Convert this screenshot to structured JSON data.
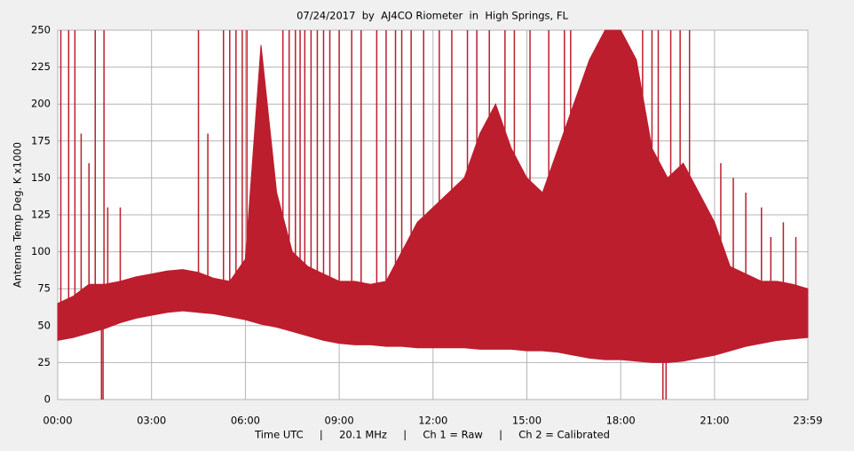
{
  "chart_data": {
    "type": "range-area",
    "title": "07/24/2017  by  AJ4CO Riometer  in  High Springs, FL",
    "ylabel": "Antenna Temp Deg. K x1000",
    "xlabel": "Time UTC     |     20.1 MHz     |     Ch 1 = Raw     |     Ch 2 = Calibrated",
    "color": "#bc1e2e",
    "grid": true,
    "xlim": [
      0,
      23.983
    ],
    "ylim": [
      0,
      250
    ],
    "xticks": [
      {
        "value": 0,
        "label": "00:00"
      },
      {
        "value": 3,
        "label": "03:00"
      },
      {
        "value": 6,
        "label": "06:00"
      },
      {
        "value": 9,
        "label": "09:00"
      },
      {
        "value": 12,
        "label": "12:00"
      },
      {
        "value": 15,
        "label": "15:00"
      },
      {
        "value": 18,
        "label": "18:00"
      },
      {
        "value": 21,
        "label": "21:00"
      },
      {
        "value": 23.983,
        "label": "23:59"
      }
    ],
    "yticks": [
      0,
      25,
      50,
      75,
      100,
      125,
      150,
      175,
      200,
      225,
      250
    ],
    "x": [
      0,
      0.5,
      1,
      1.5,
      2,
      2.5,
      3,
      3.5,
      4,
      4.5,
      5,
      5.5,
      6,
      6.5,
      7,
      7.5,
      8,
      8.5,
      9,
      9.5,
      10,
      10.5,
      11,
      11.5,
      12,
      12.5,
      13,
      13.5,
      14,
      14.5,
      15,
      15.5,
      16,
      16.5,
      17,
      17.5,
      18,
      18.5,
      19,
      19.5,
      20,
      20.5,
      21,
      21.5,
      22,
      22.5,
      23,
      23.5,
      23.983
    ],
    "lower": [
      40,
      42,
      45,
      48,
      52,
      55,
      57,
      59,
      60,
      59,
      58,
      56,
      54,
      51,
      49,
      46,
      43,
      40,
      38,
      37,
      37,
      36,
      36,
      35,
      35,
      35,
      35,
      34,
      34,
      34,
      33,
      33,
      32,
      30,
      28,
      27,
      27,
      26,
      25,
      25,
      26,
      28,
      30,
      33,
      36,
      38,
      40,
      41,
      42
    ],
    "upper": [
      65,
      70,
      78,
      78,
      80,
      83,
      85,
      87,
      88,
      86,
      82,
      80,
      95,
      240,
      140,
      100,
      90,
      85,
      80,
      80,
      78,
      80,
      100,
      120,
      130,
      140,
      150,
      180,
      200,
      170,
      150,
      140,
      170,
      200,
      230,
      250,
      250,
      230,
      170,
      150,
      160,
      140,
      120,
      90,
      85,
      80,
      80,
      78,
      75
    ],
    "spikes": {
      "x": [
        0.1,
        0.35,
        0.55,
        0.75,
        1.0,
        1.2,
        1.48,
        1.6,
        2.0,
        4.5,
        4.8,
        5.3,
        5.5,
        5.7,
        5.9,
        6.05,
        7.2,
        7.4,
        7.6,
        7.75,
        7.9,
        8.1,
        8.3,
        8.5,
        8.7,
        9.0,
        9.4,
        9.7,
        10.2,
        10.5,
        10.8,
        11.0,
        11.3,
        11.7,
        12.2,
        12.6,
        13.1,
        13.4,
        13.8,
        14.3,
        14.6,
        15.1,
        15.7,
        16.2,
        16.4,
        18.7,
        19.0,
        19.2,
        19.6,
        19.9,
        20.2,
        21.2,
        21.6,
        22.0,
        22.5,
        22.8,
        23.2,
        23.6
      ],
      "values": [
        250,
        250,
        250,
        180,
        160,
        250,
        250,
        130,
        130,
        250,
        180,
        250,
        250,
        250,
        250,
        250,
        250,
        250,
        250,
        250,
        250,
        250,
        250,
        250,
        250,
        250,
        250,
        250,
        250,
        250,
        250,
        250,
        250,
        250,
        250,
        250,
        250,
        250,
        250,
        250,
        250,
        250,
        250,
        250,
        250,
        250,
        250,
        250,
        250,
        250,
        250,
        160,
        150,
        140,
        130,
        110,
        120,
        110
      ]
    },
    "dips": {
      "x": [
        1.4,
        1.45,
        19.35,
        19.45
      ],
      "values": [
        0,
        0,
        0,
        0
      ]
    }
  }
}
